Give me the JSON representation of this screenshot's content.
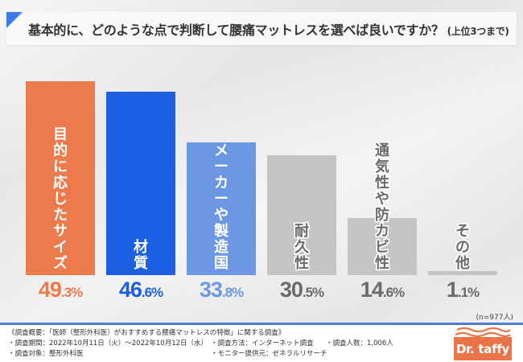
{
  "title": {
    "main": "基本的に、どのような点で判断して腰痛マットレスを選べば良いですか？",
    "sub": "(上位3つまで)"
  },
  "chart_data": {
    "type": "bar",
    "title": "基本的に、どのような点で判断して腰痛マットレスを選べば良いですか？(上位3つまで)",
    "categories": [
      "目的に応じたサイズ",
      "材質",
      "メーカーや製造国",
      "耐久性",
      "通気性や防カビ性",
      "その他"
    ],
    "values": [
      49.3,
      46.6,
      33.8,
      30.5,
      14.6,
      1.1
    ],
    "value_labels": [
      {
        "int": "49",
        "dec": ".3%"
      },
      {
        "int": "46",
        "dec": ".6%"
      },
      {
        "int": "33",
        "dec": ".8%"
      },
      {
        "int": "30",
        "dec": ".5%"
      },
      {
        "int": "14",
        "dec": ".6%"
      },
      {
        "int": "1",
        "dec": ".1%"
      }
    ],
    "colors": [
      "#ec7a4c",
      "#1c5fe3",
      "#6b97e3",
      "#c4c4c4",
      "#c4c4c4",
      "#c4c4c4"
    ],
    "value_colors": [
      "#ec7a4c",
      "#1c5fe3",
      "#6b97e3",
      "#6a6a6a",
      "#6a6a6a",
      "#6a6a6a"
    ],
    "label_styles": [
      "outline",
      "outline",
      "outline",
      "gray",
      "gray",
      "gray"
    ],
    "ylim": [
      0,
      52
    ],
    "xlabel": "",
    "ylabel": "",
    "grid": false,
    "unit": "%"
  },
  "sample_note": "(n=977人)",
  "footer": {
    "heading": "《調査概要：「医師（整形外科医）がおすすめする腰痛マットレスの特徴」に関する調査》",
    "period": "・調査期間：2022年10月11日（火）〜2022年10月12日（水）",
    "method": "・調査方法：インターネット調査",
    "count": "・調査人数：1,006人",
    "target": "・調査対象：整形外科医",
    "provider": "・モニター提供元：ゼネラルリサーチ"
  },
  "logo": {
    "text": "Dr. taffy",
    "color": "#ea7448"
  }
}
